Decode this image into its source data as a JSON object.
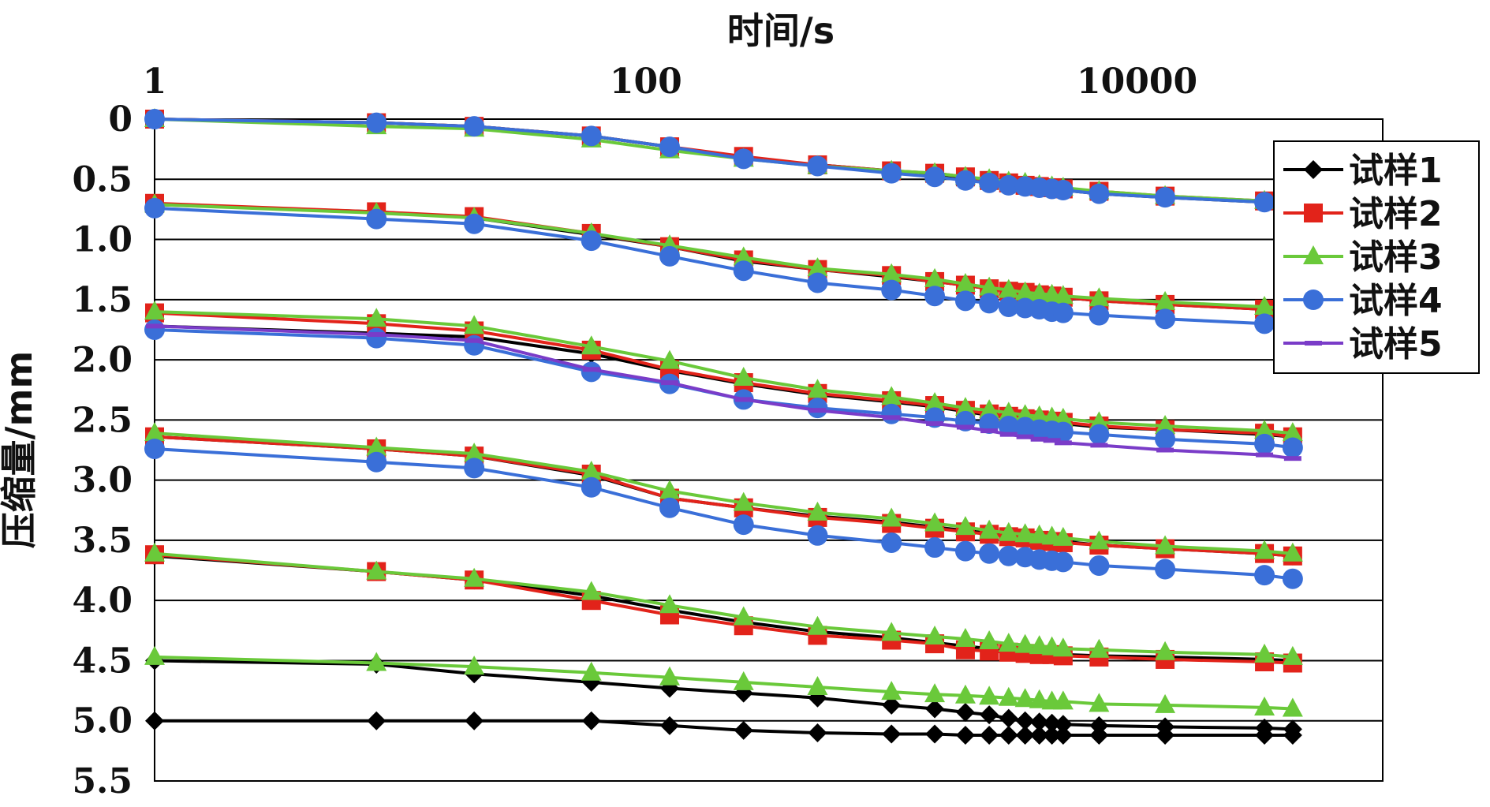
{
  "chart_data": {
    "type": "line",
    "title": "",
    "xlabel": "时间/s",
    "ylabel": "压缩量/mm",
    "x_scale": "log",
    "x_axis_position": "top",
    "y_axis_inverted": true,
    "xlim": [
      1,
      100000
    ],
    "ylim": [
      0,
      5.5
    ],
    "x_ticks": [
      1,
      100,
      10000
    ],
    "x_tick_labels": [
      "1",
      "100",
      "10000"
    ],
    "y_ticks": [
      0,
      0.5,
      1.0,
      1.5,
      2.0,
      2.5,
      3.0,
      3.5,
      4.0,
      4.5,
      5.0,
      5.5
    ],
    "y_tick_labels": [
      "0",
      "0.5",
      "1.0",
      "1.5",
      "2.0",
      "2.5",
      "3.0",
      "3.5",
      "4.0",
      "4.5",
      "5.0",
      "5.5"
    ],
    "grid": "horizontal",
    "legend_position": "right",
    "x": [
      1,
      8,
      20,
      60,
      125,
      250,
      500,
      1000,
      1500,
      2000,
      2500,
      3000,
      3500,
      4000,
      4500,
      5000,
      7000,
      13000,
      33000,
      43000
    ],
    "series": [
      {
        "name": "试样1",
        "color": "#000000",
        "marker": "diamond",
        "stages": [
          [
            0.0,
            0.03,
            0.06,
            0.14,
            0.23,
            0.32,
            0.38,
            0.43,
            0.46,
            0.49,
            0.52,
            0.54,
            0.55,
            0.57,
            0.58,
            0.59,
            0.62,
            0.65,
            0.69,
            0.71
          ],
          [
            0.71,
            0.77,
            0.82,
            0.96,
            1.06,
            1.18,
            1.25,
            1.31,
            1.35,
            1.38,
            1.41,
            1.43,
            1.45,
            1.46,
            1.47,
            1.48,
            1.51,
            1.54,
            1.58,
            1.6
          ],
          [
            1.72,
            1.78,
            1.81,
            1.95,
            2.09,
            2.2,
            2.29,
            2.35,
            2.39,
            2.43,
            2.46,
            2.48,
            2.5,
            2.51,
            2.52,
            2.53,
            2.56,
            2.58,
            2.62,
            2.64
          ],
          [
            2.64,
            2.74,
            2.8,
            2.96,
            3.15,
            3.23,
            3.3,
            3.35,
            3.39,
            3.42,
            3.44,
            3.46,
            3.48,
            3.49,
            3.5,
            3.51,
            3.54,
            3.57,
            3.61,
            3.63
          ],
          [
            3.63,
            3.76,
            3.83,
            3.96,
            4.08,
            4.18,
            4.26,
            4.31,
            4.35,
            4.38,
            4.4,
            4.41,
            4.42,
            4.43,
            4.44,
            4.45,
            4.46,
            4.47,
            4.49,
            4.5
          ],
          [
            4.5,
            4.53,
            4.61,
            4.68,
            4.73,
            4.77,
            4.81,
            4.87,
            4.9,
            4.93,
            4.95,
            4.98,
            5.0,
            5.01,
            5.02,
            5.03,
            5.04,
            5.05,
            5.06,
            5.07
          ],
          [
            5.0,
            5.0,
            5.0,
            5.0,
            5.04,
            5.08,
            5.1,
            5.11,
            5.11,
            5.12,
            5.12,
            5.12,
            5.12,
            5.12,
            5.12,
            5.12,
            5.12,
            5.12,
            5.12,
            5.12
          ]
        ]
      },
      {
        "name": "试样2",
        "color": "#e2231a",
        "marker": "square",
        "stages": [
          [
            0.0,
            0.03,
            0.06,
            0.14,
            0.23,
            0.31,
            0.38,
            0.43,
            0.45,
            0.48,
            0.51,
            0.53,
            0.55,
            0.56,
            0.57,
            0.58,
            0.6,
            0.64,
            0.68,
            0.7
          ],
          [
            0.7,
            0.77,
            0.81,
            0.95,
            1.06,
            1.17,
            1.25,
            1.3,
            1.35,
            1.38,
            1.41,
            1.43,
            1.44,
            1.46,
            1.47,
            1.48,
            1.51,
            1.54,
            1.58,
            1.6
          ],
          [
            1.61,
            1.7,
            1.76,
            1.92,
            2.08,
            2.19,
            2.28,
            2.34,
            2.38,
            2.42,
            2.45,
            2.47,
            2.49,
            2.5,
            2.51,
            2.52,
            2.55,
            2.58,
            2.61,
            2.64
          ],
          [
            2.64,
            2.74,
            2.8,
            2.95,
            3.15,
            3.23,
            3.31,
            3.36,
            3.4,
            3.43,
            3.45,
            3.47,
            3.48,
            3.5,
            3.51,
            3.52,
            3.54,
            3.57,
            3.61,
            3.63
          ],
          [
            3.62,
            3.76,
            3.83,
            4.0,
            4.12,
            4.21,
            4.29,
            4.33,
            4.36,
            4.41,
            4.42,
            4.43,
            4.44,
            4.45,
            4.45,
            4.46,
            4.47,
            4.49,
            4.51,
            4.52
          ]
        ]
      },
      {
        "name": "试样3",
        "color": "#6ac93a",
        "marker": "triangle",
        "stages": [
          [
            0.0,
            0.06,
            0.08,
            0.17,
            0.26,
            0.33,
            0.39,
            0.43,
            0.45,
            0.48,
            0.5,
            0.52,
            0.53,
            0.55,
            0.56,
            0.57,
            0.6,
            0.64,
            0.68,
            0.7
          ],
          [
            0.71,
            0.78,
            0.82,
            0.95,
            1.05,
            1.15,
            1.24,
            1.29,
            1.33,
            1.37,
            1.4,
            1.42,
            1.44,
            1.45,
            1.46,
            1.47,
            1.49,
            1.52,
            1.56,
            1.58
          ],
          [
            1.6,
            1.66,
            1.72,
            1.89,
            2.01,
            2.15,
            2.25,
            2.31,
            2.36,
            2.4,
            2.42,
            2.44,
            2.46,
            2.47,
            2.48,
            2.49,
            2.52,
            2.55,
            2.59,
            2.61
          ],
          [
            2.61,
            2.73,
            2.78,
            2.93,
            3.09,
            3.19,
            3.27,
            3.32,
            3.36,
            3.39,
            3.42,
            3.44,
            3.45,
            3.46,
            3.47,
            3.48,
            3.51,
            3.55,
            3.59,
            3.61
          ],
          [
            3.61,
            3.76,
            3.82,
            3.93,
            4.04,
            4.14,
            4.22,
            4.27,
            4.3,
            4.32,
            4.34,
            4.36,
            4.37,
            4.38,
            4.39,
            4.4,
            4.41,
            4.43,
            4.45,
            4.47
          ],
          [
            4.47,
            4.52,
            4.55,
            4.6,
            4.64,
            4.68,
            4.72,
            4.76,
            4.78,
            4.79,
            4.8,
            4.81,
            4.82,
            4.83,
            4.84,
            4.84,
            4.86,
            4.87,
            4.89,
            4.9
          ]
        ]
      },
      {
        "name": "试样4",
        "color": "#3a6fd8",
        "marker": "circle",
        "stages": [
          [
            0.0,
            0.03,
            0.06,
            0.14,
            0.23,
            0.33,
            0.39,
            0.45,
            0.48,
            0.51,
            0.53,
            0.55,
            0.56,
            0.57,
            0.58,
            0.59,
            0.62,
            0.65,
            0.69,
            0.71
          ],
          [
            0.74,
            0.83,
            0.87,
            1.01,
            1.14,
            1.26,
            1.36,
            1.42,
            1.47,
            1.51,
            1.53,
            1.56,
            1.57,
            1.58,
            1.6,
            1.61,
            1.63,
            1.66,
            1.7,
            1.73
          ],
          [
            1.75,
            1.82,
            1.88,
            2.1,
            2.2,
            2.33,
            2.4,
            2.45,
            2.48,
            2.51,
            2.53,
            2.55,
            2.56,
            2.58,
            2.59,
            2.6,
            2.62,
            2.66,
            2.7,
            2.73
          ],
          [
            2.74,
            2.85,
            2.9,
            3.06,
            3.23,
            3.37,
            3.46,
            3.52,
            3.56,
            3.59,
            3.61,
            3.63,
            3.64,
            3.66,
            3.67,
            3.68,
            3.71,
            3.74,
            3.79,
            3.82
          ]
        ]
      },
      {
        "name": "试样5",
        "color": "#7a3cc8",
        "marker": "dash",
        "stages": [
          [
            1.72,
            1.79,
            1.84,
            2.08,
            2.19,
            2.33,
            2.42,
            2.48,
            2.53,
            2.56,
            2.59,
            2.62,
            2.64,
            2.66,
            2.67,
            2.69,
            2.71,
            2.75,
            2.79,
            2.82
          ]
        ]
      }
    ]
  }
}
